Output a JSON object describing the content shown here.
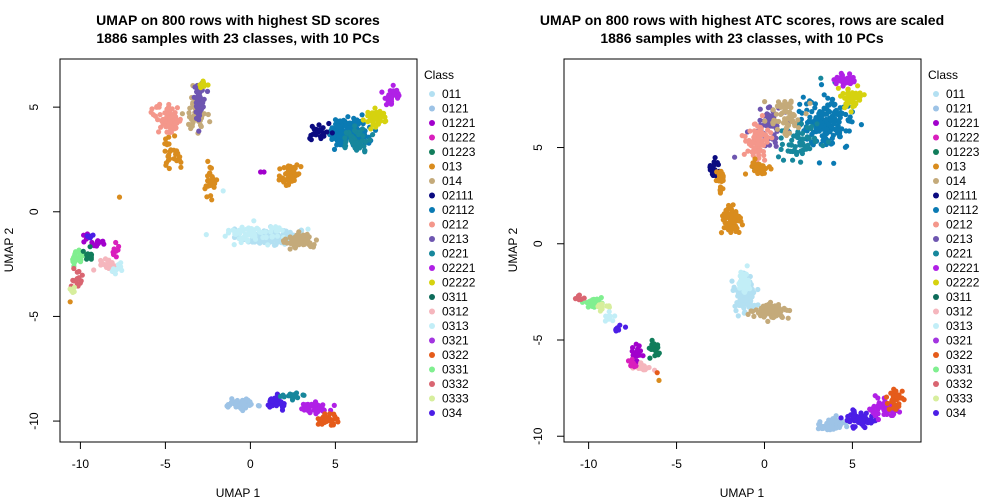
{
  "chart_data": [
    {
      "type": "scatter",
      "title_line1": "UMAP on 800 rows with highest SD scores",
      "title_line2": "1886 samples with 23 classes, with 10 PCs",
      "xlabel": "UMAP 1",
      "ylabel": "UMAP 2",
      "xlim": [
        -11.2,
        9.8
      ],
      "ylim": [
        -11.0,
        7.3
      ],
      "xticks": [
        -10,
        -5,
        0,
        5
      ],
      "yticks": [
        -10,
        -5,
        0,
        5
      ],
      "xtick_labels": [
        "-10",
        "-5",
        "0",
        "5"
      ],
      "ytick_labels": [
        "-10",
        "-5",
        "0",
        "5"
      ],
      "legend_title": "Class",
      "legend_position": "right",
      "clusters": [
        {
          "class": "011",
          "center": [
            1.2,
            -1.2
          ],
          "spread": [
            1.6,
            0.35
          ],
          "n": 140
        },
        {
          "class": "0313",
          "center": [
            0.2,
            -1.0
          ],
          "spread": [
            1.8,
            0.4
          ],
          "n": 70
        },
        {
          "class": "014",
          "center": [
            2.9,
            -1.4
          ],
          "spread": [
            0.7,
            0.3
          ],
          "n": 80
        },
        {
          "class": "013",
          "center": [
            2.4,
            1.8
          ],
          "spread": [
            0.5,
            0.6
          ],
          "n": 55
        },
        {
          "class": "013",
          "center": [
            -2.4,
            1.4
          ],
          "spread": [
            0.4,
            0.7
          ],
          "n": 30
        },
        {
          "class": "013",
          "center": [
            -4.5,
            3.0
          ],
          "spread": [
            0.6,
            1.0
          ],
          "n": 30
        },
        {
          "class": "0212",
          "center": [
            -4.8,
            4.4
          ],
          "spread": [
            0.7,
            0.6
          ],
          "n": 90
        },
        {
          "class": "014",
          "center": [
            -3.2,
            4.7
          ],
          "spread": [
            0.5,
            0.8
          ],
          "n": 50
        },
        {
          "class": "0213",
          "center": [
            -3.0,
            5.3
          ],
          "spread": [
            0.3,
            0.8
          ],
          "n": 50
        },
        {
          "class": "02222",
          "center": [
            -2.8,
            6.1
          ],
          "spread": [
            0.3,
            0.15
          ],
          "n": 12
        },
        {
          "class": "02112",
          "center": [
            5.8,
            3.8
          ],
          "spread": [
            1.0,
            0.6
          ],
          "n": 160
        },
        {
          "class": "0221",
          "center": [
            6.2,
            3.4
          ],
          "spread": [
            0.8,
            0.5
          ],
          "n": 50
        },
        {
          "class": "02222",
          "center": [
            7.4,
            4.5
          ],
          "spread": [
            0.6,
            0.35
          ],
          "n": 50
        },
        {
          "class": "02221",
          "center": [
            8.3,
            5.5
          ],
          "spread": [
            0.5,
            0.35
          ],
          "n": 35
        },
        {
          "class": "02111",
          "center": [
            4.1,
            3.8
          ],
          "spread": [
            0.5,
            0.4
          ],
          "n": 25
        },
        {
          "class": "0121",
          "center": [
            -0.6,
            -9.2
          ],
          "spread": [
            0.7,
            0.2
          ],
          "n": 60
        },
        {
          "class": "034",
          "center": [
            1.4,
            -9.1
          ],
          "spread": [
            0.5,
            0.3
          ],
          "n": 30
        },
        {
          "class": "02221",
          "center": [
            3.8,
            -9.4
          ],
          "spread": [
            0.8,
            0.3
          ],
          "n": 45
        },
        {
          "class": "0322",
          "center": [
            4.6,
            -9.9
          ],
          "spread": [
            0.5,
            0.2
          ],
          "n": 35
        },
        {
          "class": "0221",
          "center": [
            2.5,
            -8.8
          ],
          "spread": [
            0.6,
            0.15
          ],
          "n": 20
        },
        {
          "class": "0331",
          "center": [
            -10.2,
            -2.2
          ],
          "spread": [
            0.4,
            0.5
          ],
          "n": 25
        },
        {
          "class": "01221",
          "center": [
            -9.2,
            -1.4
          ],
          "spread": [
            0.5,
            0.3
          ],
          "n": 15
        },
        {
          "class": "0312",
          "center": [
            -8.4,
            -2.5
          ],
          "spread": [
            0.6,
            0.3
          ],
          "n": 25
        },
        {
          "class": "0313",
          "center": [
            -7.8,
            -2.7
          ],
          "spread": [
            0.3,
            0.2
          ],
          "n": 10
        },
        {
          "class": "0332",
          "center": [
            -10.2,
            -3.2
          ],
          "spread": [
            0.3,
            0.4
          ],
          "n": 15
        },
        {
          "class": "01223",
          "center": [
            -9.4,
            -2.0
          ],
          "spread": [
            0.4,
            0.3
          ],
          "n": 12
        },
        {
          "class": "01222",
          "center": [
            -7.9,
            -1.9
          ],
          "spread": [
            0.2,
            0.3
          ],
          "n": 10
        },
        {
          "class": "0333",
          "center": [
            -10.5,
            -3.7
          ],
          "spread": [
            0.2,
            0.3
          ],
          "n": 6
        },
        {
          "class": "034",
          "center": [
            -9.5,
            -1.2
          ],
          "spread": [
            0.3,
            0.15
          ],
          "n": 6
        }
      ],
      "isolated_points": [
        {
          "class": "013",
          "x": -10.6,
          "y": -4.3
        },
        {
          "class": "013",
          "x": -7.7,
          "y": 0.7
        },
        {
          "class": "0313",
          "x": -1.6,
          "y": 1.0
        },
        {
          "class": "01221",
          "x": 0.8,
          "y": 1.9
        },
        {
          "class": "01221",
          "x": 0.6,
          "y": 1.9
        }
      ]
    },
    {
      "type": "scatter",
      "title_line1": "UMAP on 800 rows with highest ATC scores, rows are scaled",
      "title_line2": "1886 samples with 23 classes, with 10 PCs",
      "xlabel": "UMAP 1",
      "ylabel": "UMAP 2",
      "xlim": [
        -11.4,
        8.9
      ],
      "ylim": [
        -10.3,
        9.6
      ],
      "xticks": [
        -10,
        -5,
        0,
        5
      ],
      "yticks": [
        -10,
        -5,
        0,
        5
      ],
      "xtick_labels": [
        "-10",
        "-5",
        "0",
        "5"
      ],
      "ytick_labels": [
        "-10",
        "-5",
        "0",
        "5"
      ],
      "legend_title": "Class",
      "legend_position": "right",
      "clusters": [
        {
          "class": "02112",
          "center": [
            3.5,
            6.2
          ],
          "spread": [
            1.4,
            1.2
          ],
          "n": 170
        },
        {
          "class": "0221",
          "center": [
            2.0,
            5.5
          ],
          "spread": [
            1.2,
            1.0
          ],
          "n": 60
        },
        {
          "class": "0213",
          "center": [
            0.4,
            6.2
          ],
          "spread": [
            0.6,
            0.8
          ],
          "n": 50
        },
        {
          "class": "0212",
          "center": [
            -0.4,
            5.3
          ],
          "spread": [
            0.6,
            0.9
          ],
          "n": 80
        },
        {
          "class": "014",
          "center": [
            1.2,
            6.6
          ],
          "spread": [
            0.8,
            0.9
          ],
          "n": 60
        },
        {
          "class": "02222",
          "center": [
            4.9,
            7.6
          ],
          "spread": [
            0.6,
            0.6
          ],
          "n": 45
        },
        {
          "class": "02221",
          "center": [
            4.6,
            8.5
          ],
          "spread": [
            0.7,
            0.25
          ],
          "n": 35
        },
        {
          "class": "013",
          "center": [
            -0.2,
            3.9
          ],
          "spread": [
            0.5,
            0.5
          ],
          "n": 30
        },
        {
          "class": "02111",
          "center": [
            -2.9,
            3.9
          ],
          "spread": [
            0.3,
            0.6
          ],
          "n": 25
        },
        {
          "class": "013",
          "center": [
            -1.9,
            1.2
          ],
          "spread": [
            0.5,
            0.7
          ],
          "n": 80
        },
        {
          "class": "013",
          "center": [
            -2.5,
            3.2
          ],
          "spread": [
            0.3,
            0.6
          ],
          "n": 20
        },
        {
          "class": "011",
          "center": [
            -1.1,
            -2.6
          ],
          "spread": [
            0.5,
            0.9
          ],
          "n": 130
        },
        {
          "class": "0313",
          "center": [
            -1.2,
            -2.0
          ],
          "spread": [
            0.4,
            0.6
          ],
          "n": 40
        },
        {
          "class": "014",
          "center": [
            0.4,
            -3.5
          ],
          "spread": [
            0.8,
            0.3
          ],
          "n": 90
        },
        {
          "class": "0121",
          "center": [
            3.9,
            -9.4
          ],
          "spread": [
            0.6,
            0.3
          ],
          "n": 70
        },
        {
          "class": "034",
          "center": [
            5.5,
            -9.1
          ],
          "spread": [
            0.9,
            0.4
          ],
          "n": 55
        },
        {
          "class": "02221",
          "center": [
            6.8,
            -8.6
          ],
          "spread": [
            0.7,
            0.5
          ],
          "n": 45
        },
        {
          "class": "0322",
          "center": [
            7.5,
            -8.0
          ],
          "spread": [
            0.4,
            0.5
          ],
          "n": 30
        },
        {
          "class": "0331",
          "center": [
            -9.8,
            -3.1
          ],
          "spread": [
            0.5,
            0.2
          ],
          "n": 25
        },
        {
          "class": "0333",
          "center": [
            -9.3,
            -3.3
          ],
          "spread": [
            0.4,
            0.2
          ],
          "n": 10
        },
        {
          "class": "0332",
          "center": [
            -10.6,
            -2.8
          ],
          "spread": [
            0.2,
            0.1
          ],
          "n": 10
        },
        {
          "class": "01221",
          "center": [
            -7.3,
            -5.8
          ],
          "spread": [
            0.3,
            0.5
          ],
          "n": 20
        },
        {
          "class": "01223",
          "center": [
            -6.3,
            -5.4
          ],
          "spread": [
            0.3,
            0.4
          ],
          "n": 25
        },
        {
          "class": "0312",
          "center": [
            -6.9,
            -6.4
          ],
          "spread": [
            0.5,
            0.2
          ],
          "n": 18
        },
        {
          "class": "01222",
          "center": [
            -7.5,
            -6.2
          ],
          "spread": [
            0.2,
            0.3
          ],
          "n": 10
        },
        {
          "class": "034",
          "center": [
            -8.2,
            -4.4
          ],
          "spread": [
            0.4,
            0.2
          ],
          "n": 8
        },
        {
          "class": "0313",
          "center": [
            -8.7,
            -3.8
          ],
          "spread": [
            0.4,
            0.2
          ],
          "n": 8
        }
      ],
      "isolated_points": [
        {
          "class": "013",
          "x": -6.0,
          "y": -7.1
        },
        {
          "class": "0322",
          "x": -6.1,
          "y": -6.7
        },
        {
          "class": "0213",
          "x": -1.7,
          "y": 4.5
        },
        {
          "class": "0221",
          "x": 3.2,
          "y": 8.6
        }
      ]
    }
  ],
  "classes": [
    {
      "name": "011",
      "color": "#b3e0f2"
    },
    {
      "name": "0121",
      "color": "#9dc3e6"
    },
    {
      "name": "01221",
      "color": "#a100cc"
    },
    {
      "name": "01222",
      "color": "#d91fbd"
    },
    {
      "name": "01223",
      "color": "#117d5b"
    },
    {
      "name": "013",
      "color": "#d98c1e"
    },
    {
      "name": "014",
      "color": "#c4aa7a"
    },
    {
      "name": "02111",
      "color": "#0b0b80"
    },
    {
      "name": "02112",
      "color": "#0a7ab3"
    },
    {
      "name": "0212",
      "color": "#f4978b"
    },
    {
      "name": "0213",
      "color": "#6e56b0"
    },
    {
      "name": "0221",
      "color": "#17879c"
    },
    {
      "name": "02221",
      "color": "#b020e6"
    },
    {
      "name": "02222",
      "color": "#d6d20f"
    },
    {
      "name": "0311",
      "color": "#0d6b5a"
    },
    {
      "name": "0312",
      "color": "#f5b6bd"
    },
    {
      "name": "0313",
      "color": "#c2eef7"
    },
    {
      "name": "0321",
      "color": "#a335e0"
    },
    {
      "name": "0322",
      "color": "#e55b1a"
    },
    {
      "name": "0331",
      "color": "#80ef90"
    },
    {
      "name": "0332",
      "color": "#d96571"
    },
    {
      "name": "0333",
      "color": "#d7ee9d"
    },
    {
      "name": "034",
      "color": "#4b1ee6"
    }
  ]
}
